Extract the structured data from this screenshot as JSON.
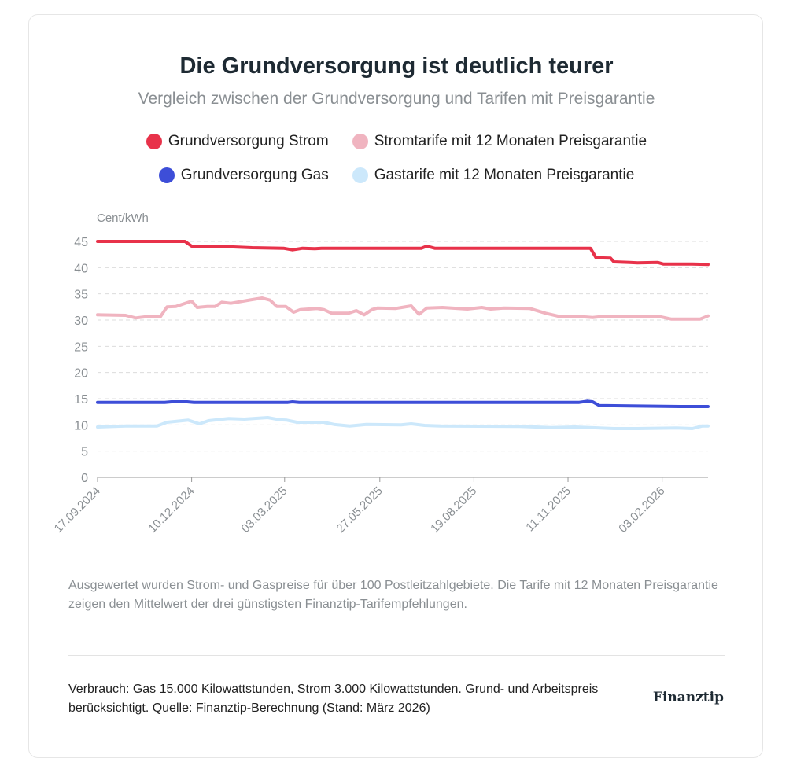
{
  "chart_data": {
    "type": "line",
    "title": "Die Grundversorgung ist deutlich teurer",
    "subtitle": "Vergleich zwischen der Grundversorgung und Tarifen mit Preisgarantie",
    "ylabel": "Cent/kWh",
    "xlabel": "",
    "x_unit": "days since 17.09.2024",
    "xlim": [
      0,
      545
    ],
    "ylim": [
      0,
      45
    ],
    "y_ticks": [
      0,
      5,
      10,
      15,
      20,
      25,
      30,
      35,
      40,
      45
    ],
    "x_ticks": [
      {
        "day": 0,
        "label": "17.09.2024"
      },
      {
        "day": 84,
        "label": "10.12.2024"
      },
      {
        "day": 167,
        "label": "03.03.2025"
      },
      {
        "day": 252,
        "label": "27.05.2025"
      },
      {
        "day": 336,
        "label": "19.08.2025"
      },
      {
        "day": 420,
        "label": "11.11.2025"
      },
      {
        "day": 504,
        "label": "03.02.2026"
      }
    ],
    "grid": true,
    "legend_position": "top-center",
    "series": [
      {
        "name": "Grundversorgung Strom",
        "color": "#e8324a",
        "points": [
          [
            0,
            45
          ],
          [
            78,
            45
          ],
          [
            84,
            44.1
          ],
          [
            117,
            44.0
          ],
          [
            138,
            43.8
          ],
          [
            166,
            43.7
          ],
          [
            174,
            43.4
          ],
          [
            183,
            43.7
          ],
          [
            194,
            43.6
          ],
          [
            200,
            43.7
          ],
          [
            289,
            43.7
          ],
          [
            294,
            44.1
          ],
          [
            301,
            43.7
          ],
          [
            440,
            43.7
          ],
          [
            445,
            41.9
          ],
          [
            458,
            41.8
          ],
          [
            461,
            41.1
          ],
          [
            475,
            41.0
          ],
          [
            482,
            40.9
          ],
          [
            500,
            41.0
          ],
          [
            505,
            40.7
          ],
          [
            531,
            40.7
          ],
          [
            545,
            40.6
          ]
        ]
      },
      {
        "name": "Stromtarife mit 12 Monaten Preisgarantie",
        "color": "#f0b4c0",
        "points": [
          [
            0,
            31.0
          ],
          [
            25,
            30.9
          ],
          [
            34,
            30.4
          ],
          [
            42,
            30.6
          ],
          [
            56,
            30.6
          ],
          [
            62,
            32.5
          ],
          [
            70,
            32.6
          ],
          [
            84,
            33.6
          ],
          [
            89,
            32.4
          ],
          [
            98,
            32.6
          ],
          [
            105,
            32.6
          ],
          [
            111,
            33.4
          ],
          [
            119,
            33.2
          ],
          [
            138,
            33.9
          ],
          [
            147,
            34.2
          ],
          [
            154,
            33.8
          ],
          [
            160,
            32.6
          ],
          [
            168,
            32.6
          ],
          [
            175,
            31.5
          ],
          [
            181,
            32.0
          ],
          [
            196,
            32.2
          ],
          [
            202,
            32.0
          ],
          [
            209,
            31.3
          ],
          [
            224,
            31.3
          ],
          [
            231,
            31.8
          ],
          [
            238,
            31.0
          ],
          [
            245,
            32.0
          ],
          [
            250,
            32.3
          ],
          [
            266,
            32.2
          ],
          [
            280,
            32.7
          ],
          [
            287,
            31.1
          ],
          [
            294,
            32.3
          ],
          [
            308,
            32.4
          ],
          [
            330,
            32.1
          ],
          [
            343,
            32.4
          ],
          [
            351,
            32.1
          ],
          [
            363,
            32.3
          ],
          [
            386,
            32.2
          ],
          [
            400,
            31.3
          ],
          [
            414,
            30.6
          ],
          [
            428,
            30.7
          ],
          [
            442,
            30.5
          ],
          [
            452,
            30.7
          ],
          [
            489,
            30.7
          ],
          [
            503,
            30.6
          ],
          [
            512,
            30.2
          ],
          [
            538,
            30.2
          ],
          [
            545,
            30.8
          ]
        ]
      },
      {
        "name": "Grundversorgung Gas",
        "color": "#3d4ed8",
        "points": [
          [
            0,
            14.3
          ],
          [
            60,
            14.3
          ],
          [
            66,
            14.4
          ],
          [
            80,
            14.4
          ],
          [
            86,
            14.3
          ],
          [
            170,
            14.3
          ],
          [
            174,
            14.4
          ],
          [
            180,
            14.3
          ],
          [
            430,
            14.3
          ],
          [
            437,
            14.5
          ],
          [
            442,
            14.4
          ],
          [
            448,
            13.7
          ],
          [
            475,
            13.6
          ],
          [
            520,
            13.5
          ],
          [
            545,
            13.5
          ]
        ]
      },
      {
        "name": "Gastarife mit 12 Monaten Preisgarantie",
        "color": "#cce8fb",
        "points": [
          [
            0,
            9.6
          ],
          [
            25,
            9.8
          ],
          [
            53,
            9.8
          ],
          [
            62,
            10.5
          ],
          [
            81,
            10.9
          ],
          [
            91,
            10.2
          ],
          [
            99,
            10.8
          ],
          [
            117,
            11.2
          ],
          [
            131,
            11.1
          ],
          [
            152,
            11.4
          ],
          [
            162,
            11.0
          ],
          [
            169,
            10.9
          ],
          [
            178,
            10.5
          ],
          [
            202,
            10.5
          ],
          [
            211,
            10.1
          ],
          [
            225,
            9.8
          ],
          [
            240,
            10.1
          ],
          [
            271,
            10.0
          ],
          [
            280,
            10.2
          ],
          [
            292,
            9.9
          ],
          [
            306,
            9.8
          ],
          [
            377,
            9.7
          ],
          [
            405,
            9.5
          ],
          [
            426,
            9.6
          ],
          [
            461,
            9.3
          ],
          [
            482,
            9.3
          ],
          [
            517,
            9.4
          ],
          [
            531,
            9.3
          ],
          [
            540,
            9.8
          ],
          [
            545,
            9.8
          ]
        ]
      }
    ]
  },
  "legend": [
    {
      "label": "Grundversorgung Strom",
      "color": "#e8324a"
    },
    {
      "label": "Stromtarife mit 12 Monaten Preisgarantie",
      "color": "#f0b4c0"
    },
    {
      "label": "Grundversorgung Gas",
      "color": "#3d4ed8"
    },
    {
      "label": "Gastarife mit 12 Monaten Preisgarantie",
      "color": "#cce8fb"
    }
  ],
  "note": "Ausgewertet wurden Strom- und Gaspreise für über 100 Postleitzahlgebiete. Die Tarife mit 12 Monaten Preisgarantie zeigen den Mittelwert der drei günstigsten Finanztip-Tarifempfehlungen.",
  "source": "Verbrauch: Gas 15.000 Kilowattstunden, Strom 3.000 Kilowattstunden. Grund- und Arbeitspreis berücksichtigt. Quelle: Finanztip-Berechnung (Stand: März 2026)",
  "logo": "Finanztip"
}
